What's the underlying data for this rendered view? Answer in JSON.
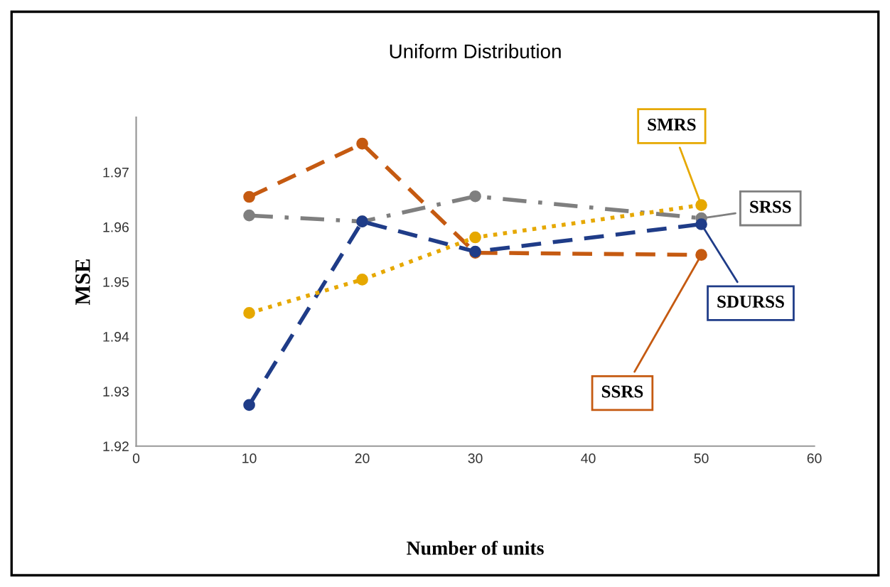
{
  "chart_data": {
    "type": "line",
    "title": "Uniform Distribution",
    "xlabel": "Number of units",
    "ylabel": "MSE",
    "x": [
      10,
      20,
      30,
      50
    ],
    "series": [
      {
        "name": "SSRS",
        "color": "#c55a11",
        "line_style": "dashed",
        "values": [
          1.9655,
          1.9752,
          1.9553,
          1.9549
        ]
      },
      {
        "name": "SRSS",
        "color": "#7f7f7f",
        "line_style": "dashdot",
        "values": [
          1.9621,
          1.961,
          1.9656,
          1.9616
        ]
      },
      {
        "name": "SDURSS",
        "color": "#1f3c88",
        "line_style": "dashed",
        "values": [
          1.9275,
          1.961,
          1.9555,
          1.9605
        ]
      },
      {
        "name": "SMRS",
        "color": "#e6a800",
        "line_style": "dotted",
        "values": [
          1.9443,
          1.9504,
          1.9581,
          1.964
        ]
      }
    ],
    "xlim": [
      0,
      60
    ],
    "xticks": [
      0,
      10,
      20,
      30,
      40,
      50,
      60
    ],
    "ylim": [
      1.92,
      1.98
    ],
    "yticks": [
      1.92,
      1.93,
      1.94,
      1.95,
      1.96,
      1.97
    ],
    "marker": "circle",
    "grid": false,
    "legend": "right"
  }
}
